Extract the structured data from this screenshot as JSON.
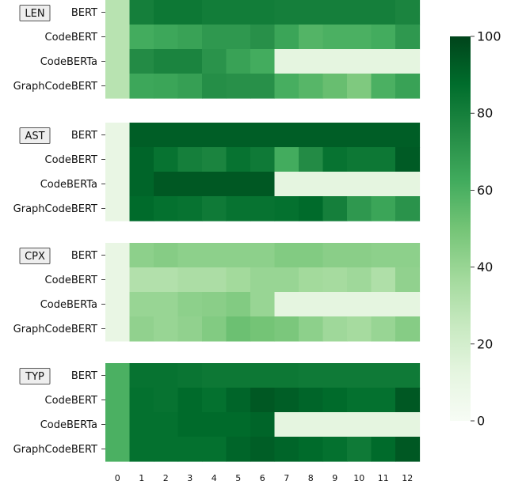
{
  "chart_data": {
    "type": "heatmap",
    "title": "",
    "xlabel": "",
    "ylabel": "",
    "x_categories": [
      "0",
      "1",
      "2",
      "3",
      "4",
      "5",
      "6",
      "7",
      "8",
      "9",
      "10",
      "11",
      "12"
    ],
    "row_labels": [
      "BERT",
      "CodeBERT",
      "CodeBERTa",
      "GraphCodeBERT"
    ],
    "color_scale": {
      "min": 0,
      "max": 100,
      "low_color": "#f7fcf5",
      "high_color": "#00441b",
      "ticks": [
        0,
        20,
        40,
        60,
        80,
        100
      ],
      "colormap": "Greens"
    },
    "missing_color": "#e5f5e0",
    "panels": [
      {
        "tag": "LEN",
        "rows": [
          {
            "label": "BERT",
            "values": [
              30,
              80,
              83,
              83,
              81,
              81,
              81,
              80,
              80,
              80,
              80,
              80,
              78
            ]
          },
          {
            "label": "CodeBERT",
            "values": [
              30,
              62,
              64,
              66,
              70,
              70,
              73,
              65,
              58,
              60,
              60,
              62,
              70
            ]
          },
          {
            "label": "CodeBERTa",
            "values": [
              30,
              75,
              78,
              78,
              72,
              66,
              62,
              null,
              null,
              null,
              null,
              null,
              null
            ]
          },
          {
            "label": "GraphCodeBERT",
            "values": [
              30,
              64,
              65,
              67,
              74,
              73,
              73,
              61,
              57,
              53,
              47,
              60,
              66
            ]
          }
        ]
      },
      {
        "tag": "AST",
        "rows": [
          {
            "label": "BERT",
            "values": [
              10,
              92,
              92,
              92,
              92,
              92,
              92,
              92,
              92,
              92,
              92,
              92,
              92
            ]
          },
          {
            "label": "CodeBERT",
            "values": [
              10,
              90,
              85,
              80,
              78,
              85,
              82,
              62,
              75,
              85,
              83,
              83,
              93
            ]
          },
          {
            "label": "CodeBERTa",
            "values": [
              10,
              90,
              94,
              94,
              94,
              94,
              94,
              null,
              null,
              null,
              null,
              null,
              null
            ]
          },
          {
            "label": "GraphCodeBERT",
            "values": [
              10,
              88,
              86,
              85,
              82,
              85,
              85,
              86,
              88,
              80,
              70,
              65,
              72
            ]
          }
        ]
      },
      {
        "tag": "CPX",
        "rows": [
          {
            "label": "BERT",
            "values": [
              10,
              43,
              45,
              43,
              43,
              43,
              43,
              46,
              46,
              44,
              44,
              43,
              43
            ]
          },
          {
            "label": "CodeBERT",
            "values": [
              10,
              32,
              32,
              34,
              34,
              37,
              40,
              40,
              37,
              36,
              38,
              33,
              42
            ]
          },
          {
            "label": "CodeBERTa",
            "values": [
              10,
              40,
              40,
              43,
              44,
              46,
              40,
              null,
              null,
              null,
              null,
              null,
              null
            ]
          },
          {
            "label": "GraphCodeBERT",
            "values": [
              10,
              42,
              40,
              42,
              46,
              52,
              50,
              48,
              43,
              38,
              36,
              40,
              45
            ]
          }
        ]
      },
      {
        "tag": "TYP",
        "rows": [
          {
            "label": "BERT",
            "values": [
              60,
              85,
              85,
              84,
              83,
              83,
              83,
              83,
              82,
              82,
              82,
              82,
              82
            ]
          },
          {
            "label": "CodeBERT",
            "values": [
              60,
              86,
              85,
              88,
              86,
              90,
              94,
              92,
              90,
              88,
              86,
              86,
              94
            ]
          },
          {
            "label": "CodeBERTa",
            "values": [
              60,
              86,
              86,
              88,
              88,
              88,
              90,
              null,
              null,
              null,
              null,
              null,
              null
            ]
          },
          {
            "label": "GraphCodeBERT",
            "values": [
              60,
              86,
              86,
              86,
              86,
              90,
              92,
              90,
              88,
              86,
              82,
              88,
              94
            ]
          }
        ]
      }
    ]
  }
}
